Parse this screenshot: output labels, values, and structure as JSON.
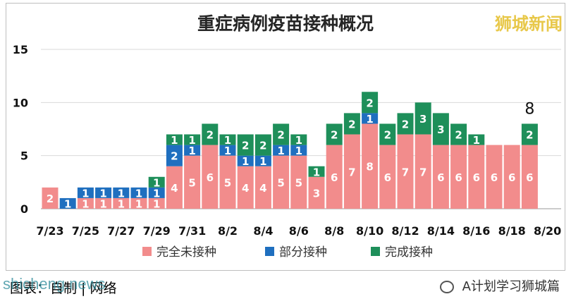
{
  "title": "重症病例疫苗接种概况",
  "watermark_top": "狮城新闻",
  "footer": {
    "source_text": "图表：自制 | 网络",
    "watermark_left": "shicheng.news",
    "account": "A计划学习狮城篇"
  },
  "colors": {
    "unvaccinated": "#f28c8c",
    "partial": "#1f6fbf",
    "full": "#1e8f5a"
  },
  "chart_data": {
    "type": "bar",
    "stacked": true,
    "categories": [
      "7/23",
      "7/24",
      "7/25",
      "7/26",
      "7/27",
      "7/28",
      "7/29",
      "7/30",
      "7/31",
      "8/1",
      "8/2",
      "8/3",
      "8/4",
      "8/5",
      "8/6",
      "8/7",
      "8/8",
      "8/9",
      "8/10",
      "8/11",
      "8/12",
      "8/13",
      "8/14",
      "8/15",
      "8/16",
      "8/17",
      "8/18",
      "8/19"
    ],
    "x_tick_labels": [
      "7/23",
      "7/25",
      "7/27",
      "7/29",
      "7/31",
      "8/2",
      "8/4",
      "8/6",
      "8/8",
      "8/10",
      "8/12",
      "8/14",
      "8/16",
      "8/18",
      "8/20"
    ],
    "series": [
      {
        "name": "完全未接种",
        "values": [
          2,
          0,
          1,
          1,
          1,
          1,
          1,
          4,
          5,
          6,
          5,
          4,
          4,
          5,
          5,
          3,
          6,
          7,
          8,
          6,
          7,
          7,
          6,
          6,
          6,
          6,
          6,
          6
        ]
      },
      {
        "name": "部分接种",
        "values": [
          0,
          1,
          1,
          1,
          1,
          1,
          1,
          2,
          1,
          0,
          1,
          1,
          1,
          1,
          1,
          0,
          0,
          0,
          1,
          0,
          0,
          0,
          0,
          0,
          0,
          0,
          0,
          0
        ]
      },
      {
        "name": "完成接种",
        "values": [
          0,
          0,
          0,
          0,
          0,
          0,
          1,
          1,
          1,
          2,
          1,
          2,
          2,
          2,
          1,
          1,
          2,
          2,
          2,
          2,
          2,
          3,
          3,
          2,
          1,
          0,
          0,
          2
        ]
      }
    ],
    "y_ticks": [
      0,
      5,
      10,
      15
    ],
    "ylim": [
      0,
      15
    ],
    "annotations": [
      {
        "category": "8/19",
        "text": "8"
      }
    ],
    "legend_position": "bottom"
  }
}
